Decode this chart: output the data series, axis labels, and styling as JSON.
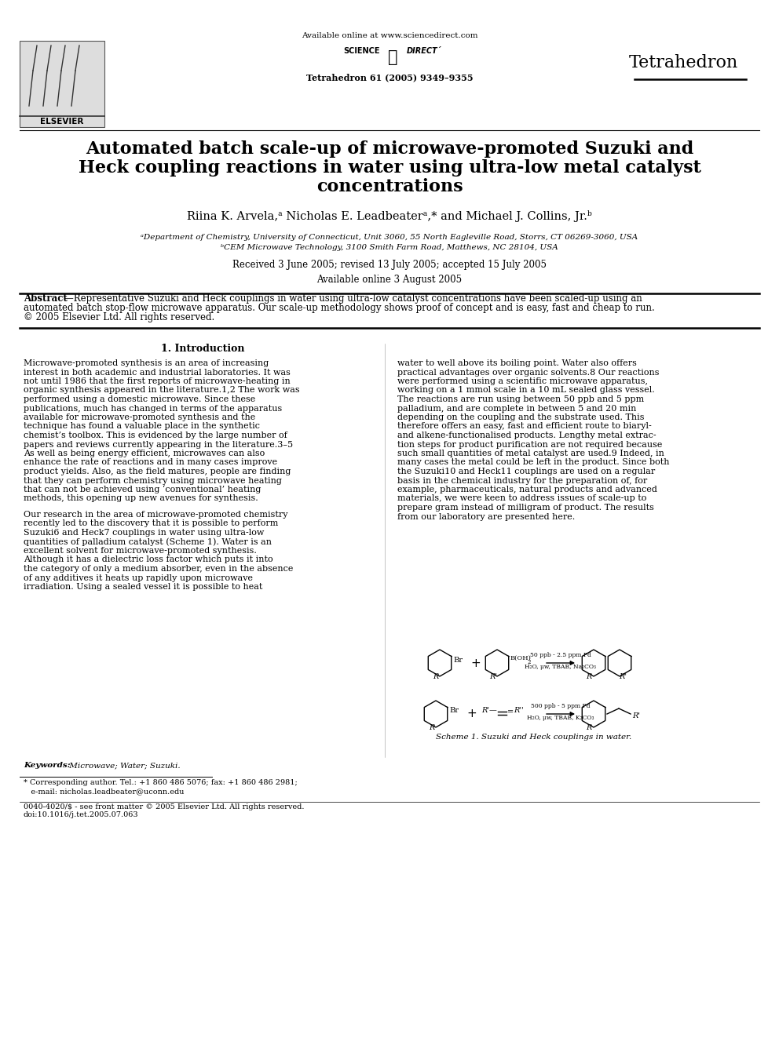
{
  "title_line1": "Automated batch scale-up of microwave-promoted Suzuki and",
  "title_line2": "Heck coupling reactions in water using ultra-low metal catalyst",
  "title_line3": "concentrations",
  "authors": "Riina K. Arvela,ᵃ Nicholas E. Leadbeaterᵃ,* and Michael J. Collins, Jr.ᵇ",
  "affil_a": "ᵃDepartment of Chemistry, University of Connecticut, Unit 3060, 55 North Eagleville Road, Storrs, CT 06269-3060, USA",
  "affil_b": "ᵇCEM Microwave Technology, 3100 Smith Farm Road, Matthews, NC 28104, USA",
  "dates": "Received 3 June 2005; revised 13 July 2005; accepted 15 July 2005",
  "online": "Available online 3 August 2005",
  "journal_header": "Available online at www.sciencedirect.com",
  "journal_name": "Tetrahedron",
  "journal_issue": "Tetrahedron 61 (2005) 9349–9355",
  "abstract_label": "Abstract",
  "intro_heading": "1. Introduction",
  "keywords_label": "Keywords:",
  "keywords_text": "Microwave; Water; Suzuki.",
  "footnote_star": "* Corresponding author. Tel.: +1 860 486 5076; fax: +1 860 486 2981;",
  "footnote_email": "   e-mail: nicholas.leadbeater@uconn.edu",
  "footnote_doi": "0040-4020/$ - see front matter © 2005 Elsevier Ltd. All rights reserved.",
  "footnote_doi2": "doi:10.1016/j.tet.2005.07.063",
  "scheme1_label": "Scheme 1. Suzuki and Heck couplings in water.",
  "col1_lines_p1": [
    "Microwave-promoted synthesis is an area of increasing",
    "interest in both academic and industrial laboratories. It was",
    "not until 1986 that the first reports of microwave-heating in",
    "organic synthesis appeared in the literature.1,2 The work was",
    "performed using a domestic microwave. Since these",
    "publications, much has changed in terms of the apparatus",
    "available for microwave-promoted synthesis and the",
    "technique has found a valuable place in the synthetic",
    "chemist’s toolbox. This is evidenced by the large number of",
    "papers and reviews currently appearing in the literature.3–5",
    "As well as being energy efficient, microwaves can also",
    "enhance the rate of reactions and in many cases improve",
    "product yields. Also, as the field matures, people are finding",
    "that they can perform chemistry using microwave heating",
    "that can not be achieved using ‘conventional’ heating",
    "methods, this opening up new avenues for synthesis."
  ],
  "col1_lines_p2": [
    "Our research in the area of microwave-promoted chemistry",
    "recently led to the discovery that it is possible to perform",
    "Suzuki6 and Heck7 couplings in water using ultra-low",
    "quantities of palladium catalyst (Scheme 1). Water is an",
    "excellent solvent for microwave-promoted synthesis.",
    "Although it has a dielectric loss factor which puts it into",
    "the category of only a medium absorber, even in the absence",
    "of any additives it heats up rapidly upon microwave",
    "irradiation. Using a sealed vessel it is possible to heat"
  ],
  "col2_lines_p1": [
    "water to well above its boiling point. Water also offers",
    "practical advantages over organic solvents.8 Our reactions",
    "were performed using a scientific microwave apparatus,",
    "working on a 1 mmol scale in a 10 mL sealed glass vessel.",
    "The reactions are run using between 50 ppb and 5 ppm",
    "palladium, and are complete in between 5 and 20 min",
    "depending on the coupling and the substrate used. This",
    "therefore offers an easy, fast and efficient route to biaryl-",
    "and alkene-functionalised products. Lengthy metal extrac-",
    "tion steps for product purification are not required because",
    "such small quantities of metal catalyst are used.9 Indeed, in",
    "many cases the metal could be left in the product. Since both",
    "the Suzuki10 and Heck11 couplings are used on a regular",
    "basis in the chemical industry for the preparation of, for",
    "example, pharmaceuticals, natural products and advanced",
    "materials, we were keen to address issues of scale-up to",
    "prepare gram instead of milligram of product. The results",
    "from our laboratory are presented here."
  ],
  "abstract_line1": "—Representative Suzuki and Heck couplings in water using ultra-low catalyst concentrations have been scaled-up using an",
  "abstract_line2": "automated batch stop-flow microwave apparatus. Our scale-up methodology shows proof of concept and is easy, fast and cheap to run.",
  "abstract_line3": "© 2005 Elsevier Ltd. All rights reserved.",
  "bg_color": "#ffffff",
  "text_color": "#000000"
}
